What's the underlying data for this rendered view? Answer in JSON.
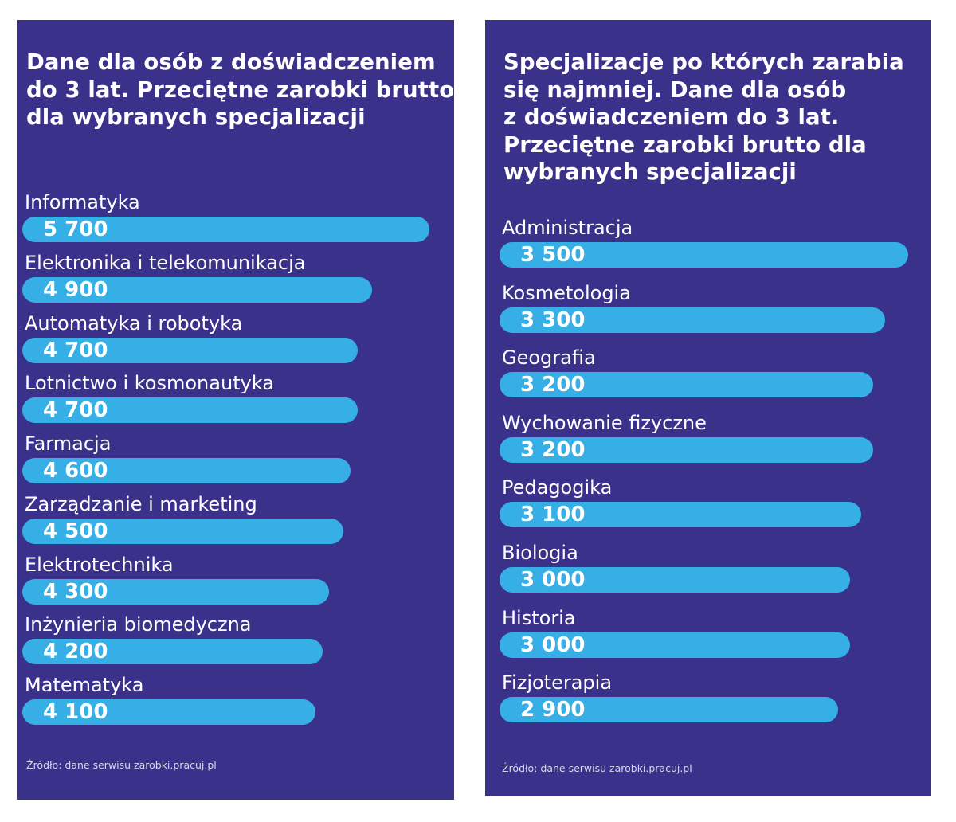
{
  "chart_data": [
    {
      "type": "bar",
      "orientation": "horizontal",
      "title": "Dane dla osób z doświadczeniem\ndo 3 lat. Przeciętne zarobki brutto\ndla wybranych specjalizacji",
      "categories": [
        "Informatyka",
        "Elektronika i telekomunikacja",
        "Automatyka i robotyka",
        "Lotnictwo i kosmonautyka",
        "Farmacja",
        "Zarządzanie i marketing",
        "Elektrotechnika",
        "Inżynieria biomedyczna",
        "Matematyka"
      ],
      "values": [
        5700,
        4900,
        4700,
        4700,
        4600,
        4500,
        4300,
        4200,
        4100
      ],
      "value_labels": [
        "5 700",
        "4 900",
        "4 700",
        "4 700",
        "4 600",
        "4 500",
        "4 300",
        "4 200",
        "4 100"
      ],
      "source": "Źródło: dane serwisu zarobki.pracuj.pl",
      "grid": false,
      "legend": "none"
    },
    {
      "type": "bar",
      "orientation": "horizontal",
      "title": "Specjalizacje po których zarabia\nsię najmniej. Dane dla osób\nz doświadczeniem do 3 lat.\nPrzeciętne zarobki brutto dla\nwybranych specjalizacji",
      "categories": [
        "Administracja",
        "Kosmetologia",
        "Geografia",
        "Wychowanie fizyczne",
        "Pedagogika",
        "Biologia",
        "Historia",
        "Fizjoterapia"
      ],
      "values": [
        3500,
        3300,
        3200,
        3200,
        3100,
        3000,
        3000,
        2900
      ],
      "value_labels": [
        "3 500",
        "3 300",
        "3 200",
        "3 200",
        "3 100",
        "3 000",
        "3 000",
        "2 900"
      ],
      "source": "Źródło: dane serwisu zarobki.pracuj.pl",
      "grid": false,
      "legend": "none"
    }
  ],
  "colors": {
    "panel_background": "#3a318a",
    "bar_fill": "#36aee6",
    "text": "#ffffff"
  }
}
